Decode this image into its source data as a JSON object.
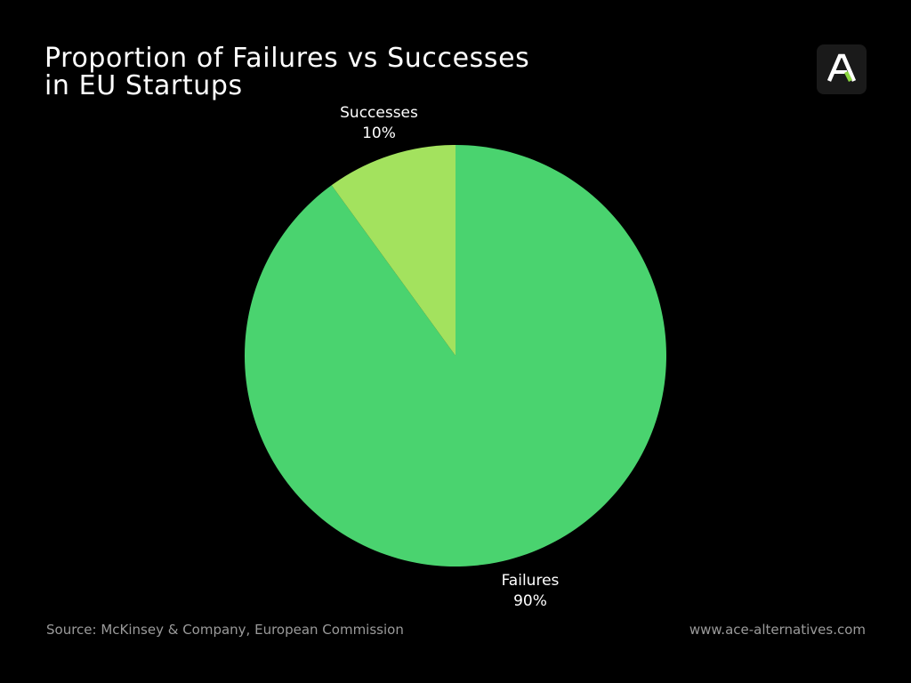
{
  "title_lines": [
    "Proportion of Failures vs Successes",
    "in EU Startups"
  ],
  "logo": {
    "icon": "ace-alternatives-logo-icon",
    "accent": "#8BD63F"
  },
  "chart_data": {
    "type": "pie",
    "title": "Proportion of Failures vs Successes in EU Startups",
    "slices": [
      {
        "label": "Failures",
        "value": 90,
        "value_label": "90%",
        "color": "#4AD36F"
      },
      {
        "label": "Successes",
        "value": 10,
        "value_label": "10%",
        "color": "#A3E25E"
      }
    ],
    "start_angle_deg": 0,
    "direction": "clockwise",
    "legend": "none"
  },
  "footer": {
    "source": "Source: McKinsey & Company, European Commission",
    "url": "www.ace-alternatives.com"
  }
}
